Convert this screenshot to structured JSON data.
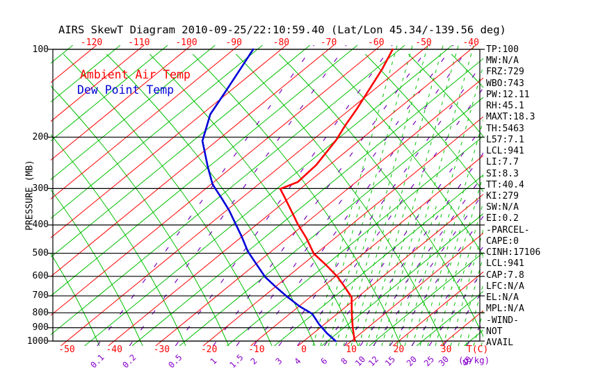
{
  "title": "AIRS SkewT Diagram 2010-09-25/22:10:59.40 (Lat/Lon 45.34/-139.56 deg)",
  "legend": {
    "temp_label": "Ambient Air Temp",
    "dew_label": "Dew Point Temp"
  },
  "axes": {
    "pressure_axis_label": "PRESSURE (MB)",
    "pressure_ticks": [
      100,
      200,
      300,
      400,
      500,
      600,
      700,
      800,
      900,
      1000
    ],
    "top_temp_ticks": [
      -120,
      -110,
      -100,
      -90,
      -80,
      -70,
      -60,
      -50,
      -40
    ],
    "bottom_temp_ticks": [
      -50,
      -40,
      -30,
      -20,
      -10,
      0,
      10,
      20,
      30
    ],
    "temp_unit_label": "T(C)",
    "mixing_ratio_ticks": [
      0.1,
      0.2,
      0.5,
      1,
      1.5,
      2,
      3,
      4,
      6,
      8,
      10,
      12,
      15,
      20,
      25,
      30,
      40
    ],
    "mixing_ratio_unit_label": "(g/kg)"
  },
  "stats": [
    "TP:100",
    "MW:N/A",
    "FRZ:729",
    "WBO:743",
    "PW:12.11",
    "RH:45.1",
    "MAXT:18.3",
    "TH:5463",
    "L57:7.1",
    "LCL:941",
    "LI:7.7",
    "SI:8.3",
    "TT:40.4",
    "KI:279",
    "SW:N/A",
    "EI:0.2",
    "-PARCEL-",
    "CAPE:0",
    "CINH:17106",
    "LCL:941",
    "CAP:7.8",
    "LFC:N/A",
    "EL:N/A",
    "MPL:N/A",
    "-WIND-",
    "NOT",
    "AVAIL"
  ],
  "colors": {
    "isotherm_red": "#ff0000",
    "grid_green": "#00c000",
    "mixing_purple": "#7700bb",
    "label_purple": "#8800cc",
    "dewpoint_blue": "#0000d8",
    "temperature_red": "#ff0000",
    "axis_black": "#000000",
    "background": "#ffffff"
  },
  "chart_data": {
    "type": "line",
    "title": "AIRS SkewT Diagram 2010-09-25/22:10:59.40 (Lat/Lon 45.34/-139.56 deg)",
    "xlabel": "T(C)",
    "ylabel": "PRESSURE (MB)",
    "y_scale": "log",
    "ylim": [
      1000,
      100
    ],
    "x_top_ticks": [
      -120,
      -110,
      -100,
      -90,
      -80,
      -70,
      -60,
      -50,
      -40
    ],
    "x_bottom_ticks": [
      -50,
      -40,
      -30,
      -20,
      -10,
      0,
      10,
      20,
      30
    ],
    "mixing_ratio_lines_g_kg": [
      0.1,
      0.2,
      0.5,
      1,
      1.5,
      2,
      3,
      4,
      6,
      8,
      10,
      12,
      15,
      20,
      25,
      30,
      40
    ],
    "grid": "skew-t lattice: red isotherms every 10C, green isotherms every 5C, green dry adiabats, green dashed moist adiabats, purple dashed mixing-ratio lines",
    "legend_position": "upper-left inside plot",
    "series": [
      {
        "name": "Ambient Air Temp",
        "color": "#ff0000",
        "points_p_mb_t_c": [
          [
            100,
            -56.5
          ],
          [
            117,
            -53.6
          ],
          [
            138,
            -51.0
          ],
          [
            161,
            -48.6
          ],
          [
            182,
            -46.9
          ],
          [
            205,
            -45.0
          ],
          [
            249,
            -42.8
          ],
          [
            285,
            -42.3
          ],
          [
            301,
            -44.2
          ],
          [
            323,
            -40.9
          ],
          [
            396,
            -31.6
          ],
          [
            443,
            -26.1
          ],
          [
            502,
            -20.4
          ],
          [
            547,
            -15.1
          ],
          [
            601,
            -9.6
          ],
          [
            649,
            -5.6
          ],
          [
            708,
            -1.2
          ],
          [
            800,
            2.8
          ],
          [
            901,
            6.9
          ],
          [
            1000,
            10.7
          ]
        ]
      },
      {
        "name": "Dew Point Temp",
        "color": "#0000d8",
        "points_p_mb_t_c": [
          [
            100,
            -85.9
          ],
          [
            117,
            -83.5
          ],
          [
            142,
            -80.6
          ],
          [
            167,
            -78.2
          ],
          [
            206,
            -73.0
          ],
          [
            252,
            -65.3
          ],
          [
            290,
            -59.7
          ],
          [
            327,
            -53.7
          ],
          [
            357,
            -49.4
          ],
          [
            395,
            -44.8
          ],
          [
            437,
            -40.2
          ],
          [
            492,
            -35.0
          ],
          [
            539,
            -30.4
          ],
          [
            603,
            -24.7
          ],
          [
            651,
            -20.0
          ],
          [
            700,
            -15.4
          ],
          [
            760,
            -9.9
          ],
          [
            806,
            -5.3
          ],
          [
            878,
            -1.0
          ],
          [
            941,
            2.9
          ],
          [
            1000,
            6.7
          ]
        ]
      }
    ]
  }
}
